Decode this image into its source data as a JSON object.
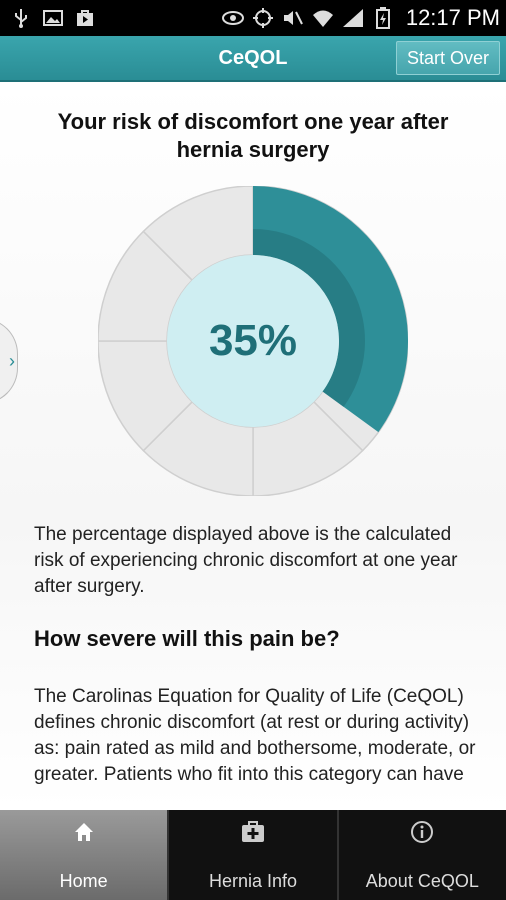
{
  "status": {
    "time": "12:17 PM"
  },
  "app": {
    "title": "CeQOL",
    "start_over": "Start Over"
  },
  "main": {
    "heading": "Your risk of discomfort one year after hernia surgery",
    "percent_label": "35%",
    "risk_fraction": 0.35,
    "side_tab_glyph": "›",
    "paragraph1": "The percentage displayed above is the calculated risk of experiencing chronic discomfort at one year after surgery.",
    "subheading": "How severe will this pain be?",
    "paragraph2": "The Carolinas Equation for Quality of Life (CeQOL) defines chronic discomfort (at rest or during activity) as: pain rated as mild and bothersome, moderate, or greater. Patients who fit into this category can have"
  },
  "tabs": [
    {
      "label": "Home",
      "icon": "home-icon",
      "active": true
    },
    {
      "label": "Hernia Info",
      "icon": "medkit-icon",
      "active": false
    },
    {
      "label": "About CeQOL",
      "icon": "info-icon",
      "active": false
    }
  ],
  "colors": {
    "accent": "#2a8d95",
    "ring_fill": "#2e8f98",
    "ring_empty": "#e8e8e8",
    "center": "#cfeef2"
  }
}
